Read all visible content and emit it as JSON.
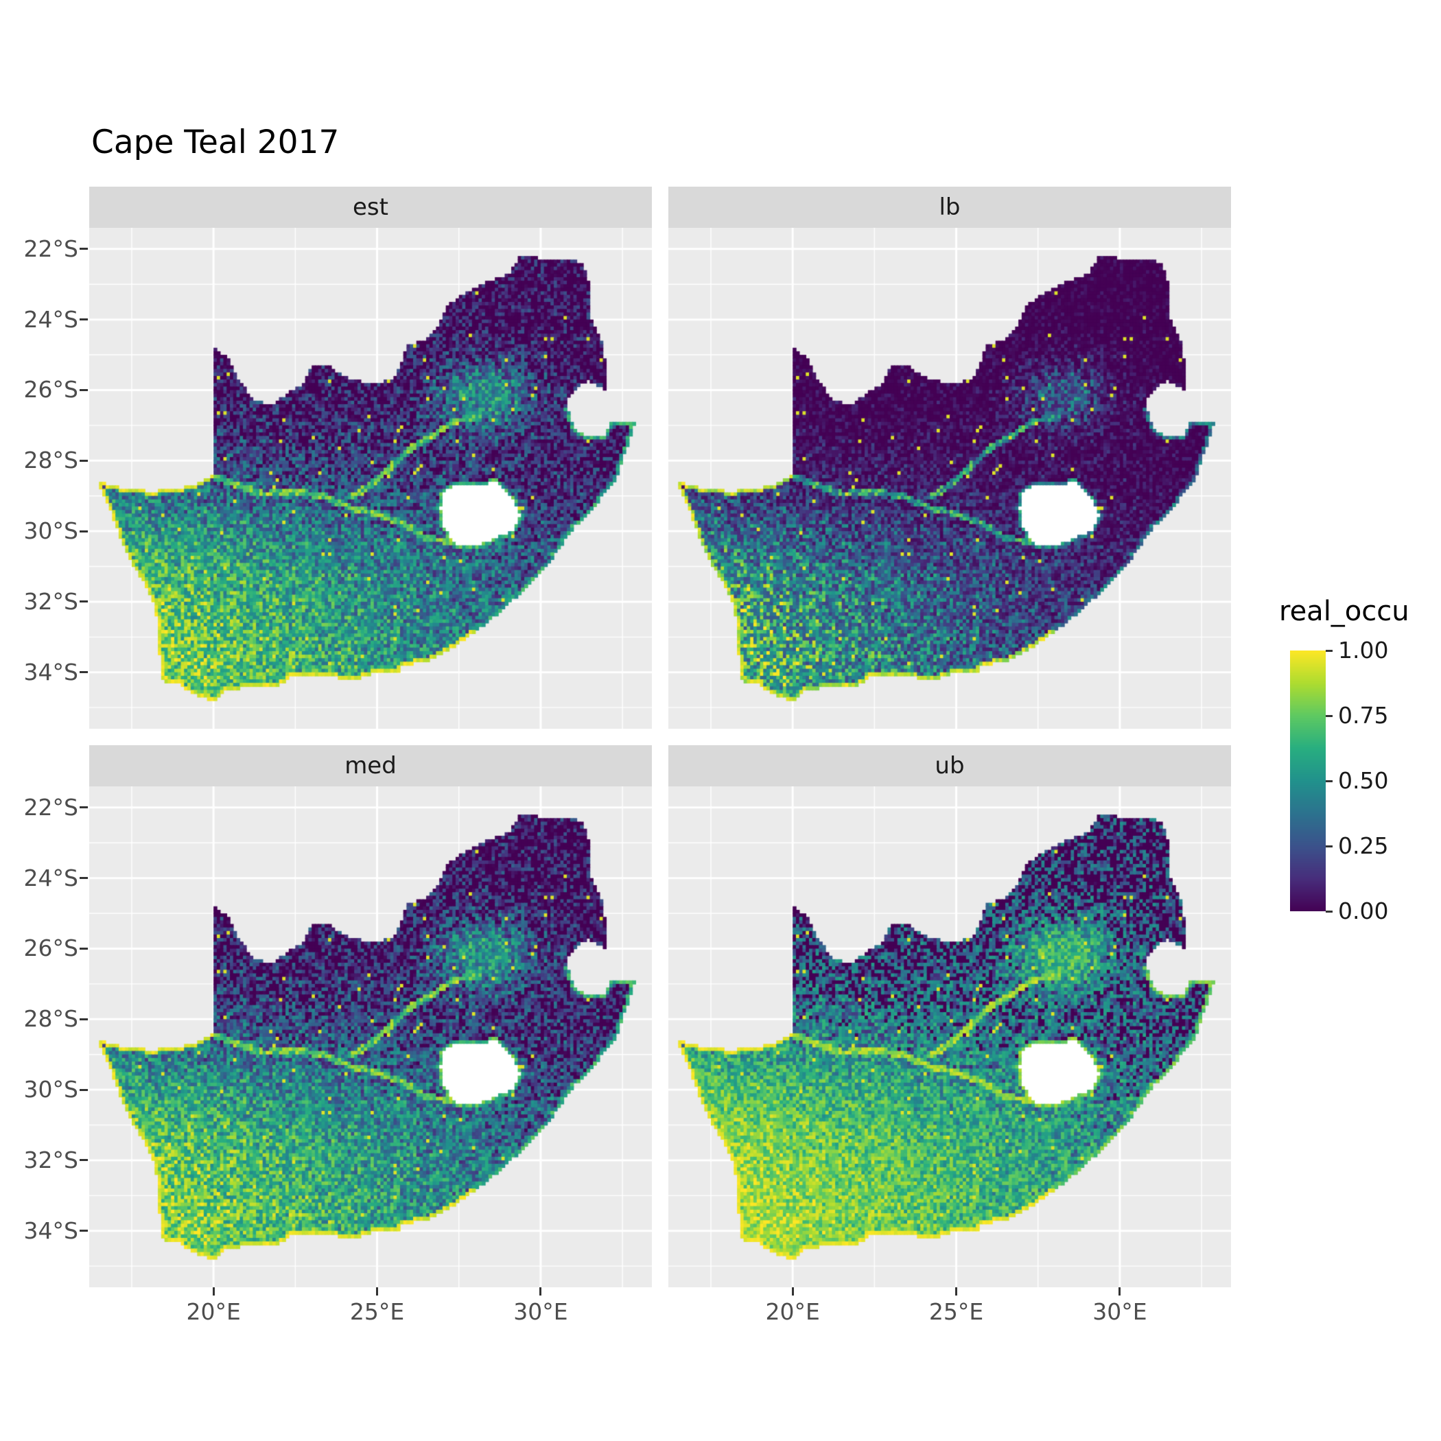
{
  "title": "Cape Teal 2017",
  "colors": {
    "background": "#FFFFFF",
    "panel_bg": "#EBEBEB",
    "strip_bg": "#D9D9D9",
    "grid": "#FFFFFF",
    "axis_text": "#4D4D4D",
    "tick": "#333333",
    "na_fill": "#FFFFFF",
    "title_text": "#000000"
  },
  "chart_data": {
    "type": "heatmap",
    "subtype": "faceted-raster-map",
    "title": "Cape Teal 2017",
    "facets": [
      {
        "label": "est",
        "gamma": 1.0
      },
      {
        "label": "lb",
        "gamma": 1.9
      },
      {
        "label": "med",
        "gamma": 0.9
      },
      {
        "label": "ub",
        "gamma": 0.55
      }
    ],
    "axes": {
      "x": {
        "labels": [
          "20°E",
          "25°E",
          "30°E"
        ],
        "values": [
          20,
          25,
          30
        ],
        "minor": [
          17.5,
          22.5,
          27.5,
          32.5
        ],
        "range": [
          16.2,
          33.4
        ]
      },
      "y": {
        "labels": [
          "22°S",
          "24°S",
          "26°S",
          "28°S",
          "30°S",
          "32°S",
          "34°S"
        ],
        "values": [
          -22,
          -24,
          -26,
          -28,
          -30,
          -32,
          -34
        ],
        "minor": [
          -23,
          -25,
          -27,
          -29,
          -31,
          -33,
          -35
        ],
        "range": [
          -35.6,
          -21.4
        ]
      }
    },
    "legend": {
      "title": "real_occu",
      "labels": [
        "1.00",
        "0.75",
        "0.50",
        "0.25",
        "0.00"
      ],
      "values": [
        1.0,
        0.75,
        0.5,
        0.25,
        0.0
      ],
      "position": "right"
    },
    "viridis": [
      "#440154",
      "#472D7B",
      "#3B528B",
      "#2C728E",
      "#21918C",
      "#28AE80",
      "#5EC962",
      "#ADDC30",
      "#FDE725"
    ],
    "value_model": {
      "res": 0.1,
      "lat_mid": -29.2,
      "lat_scale": 1.3,
      "lon_base": 1.12,
      "lon_slope": 0.052,
      "hotspot": {
        "lon": 28.3,
        "lat": -26.15,
        "amp": 0.62,
        "sx": 2.6,
        "sy": 1.1
      },
      "signal_weight": 0.82,
      "noise_amp": 0.5,
      "facet_jitter": 0.12
    },
    "map": {
      "south_africa": [
        [
          16.45,
          -28.58
        ],
        [
          17.2,
          -28.77
        ],
        [
          17.95,
          -28.86
        ],
        [
          18.7,
          -28.84
        ],
        [
          19.4,
          -28.68
        ],
        [
          19.98,
          -28.43
        ],
        [
          19.98,
          -24.75
        ],
        [
          20.45,
          -25.1
        ],
        [
          20.8,
          -25.75
        ],
        [
          21.25,
          -26.3
        ],
        [
          21.8,
          -26.4
        ],
        [
          22.25,
          -26.1
        ],
        [
          22.7,
          -25.85
        ],
        [
          23.0,
          -25.35
        ],
        [
          23.5,
          -25.3
        ],
        [
          24.0,
          -25.62
        ],
        [
          24.75,
          -25.8
        ],
        [
          25.4,
          -25.72
        ],
        [
          25.65,
          -25.45
        ],
        [
          25.9,
          -24.72
        ],
        [
          26.45,
          -24.6
        ],
        [
          26.85,
          -24.25
        ],
        [
          27.15,
          -23.6
        ],
        [
          27.75,
          -23.2
        ],
        [
          28.3,
          -22.95
        ],
        [
          29.0,
          -22.73
        ],
        [
          29.4,
          -22.18
        ],
        [
          30.1,
          -22.28
        ],
        [
          30.85,
          -22.3
        ],
        [
          31.3,
          -22.4
        ],
        [
          31.55,
          -23.2
        ],
        [
          31.55,
          -23.95
        ],
        [
          31.85,
          -24.55
        ],
        [
          31.97,
          -25.15
        ],
        [
          32.02,
          -25.65
        ],
        [
          31.95,
          -25.97
        ],
        [
          31.42,
          -25.73
        ],
        [
          31.05,
          -25.97
        ],
        [
          30.8,
          -26.32
        ],
        [
          30.9,
          -26.85
        ],
        [
          31.15,
          -27.2
        ],
        [
          31.6,
          -27.33
        ],
        [
          31.97,
          -27.31
        ],
        [
          32.13,
          -26.85
        ],
        [
          32.89,
          -26.86
        ],
        [
          32.62,
          -27.65
        ],
        [
          32.3,
          -28.5
        ],
        [
          31.8,
          -29.1
        ],
        [
          31.05,
          -29.85
        ],
        [
          30.4,
          -30.7
        ],
        [
          29.6,
          -31.55
        ],
        [
          28.8,
          -32.25
        ],
        [
          28.0,
          -32.85
        ],
        [
          27.3,
          -33.3
        ],
        [
          26.5,
          -33.7
        ],
        [
          25.7,
          -33.8
        ],
        [
          25.65,
          -34.05
        ],
        [
          25.0,
          -34.0
        ],
        [
          24.3,
          -34.2
        ],
        [
          23.4,
          -34.1
        ],
        [
          22.5,
          -34.05
        ],
        [
          21.9,
          -34.42
        ],
        [
          21.0,
          -34.42
        ],
        [
          20.4,
          -34.5
        ],
        [
          20.0,
          -34.82
        ],
        [
          19.4,
          -34.62
        ],
        [
          19.0,
          -34.35
        ],
        [
          18.5,
          -34.3
        ],
        [
          18.35,
          -34.0
        ],
        [
          18.47,
          -33.7
        ],
        [
          18.25,
          -33.3
        ],
        [
          18.35,
          -32.7
        ],
        [
          18.15,
          -32.0
        ],
        [
          17.8,
          -31.35
        ],
        [
          17.3,
          -30.55
        ],
        [
          17.0,
          -29.8
        ],
        [
          16.75,
          -29.15
        ]
      ],
      "lesotho": [
        [
          27.0,
          -28.9
        ],
        [
          27.55,
          -28.65
        ],
        [
          28.15,
          -28.7
        ],
        [
          28.65,
          -28.58
        ],
        [
          29.15,
          -29.1
        ],
        [
          29.38,
          -29.58
        ],
        [
          29.15,
          -29.97
        ],
        [
          28.8,
          -30.12
        ],
        [
          28.3,
          -30.32
        ],
        [
          27.75,
          -30.45
        ],
        [
          27.35,
          -30.33
        ],
        [
          27.05,
          -29.85
        ],
        [
          26.95,
          -29.35
        ]
      ],
      "rivers": [
        [
          [
            27.3,
            -30.3
          ],
          [
            26.5,
            -30.2
          ],
          [
            25.8,
            -29.8
          ],
          [
            25.0,
            -29.5
          ],
          [
            24.2,
            -29.35
          ],
          [
            23.4,
            -29.0
          ],
          [
            22.5,
            -28.9
          ],
          [
            21.5,
            -28.95
          ],
          [
            20.6,
            -28.65
          ],
          [
            19.98,
            -28.45
          ]
        ],
        [
          [
            28.1,
            -26.75
          ],
          [
            27.3,
            -26.9
          ],
          [
            26.7,
            -27.3
          ],
          [
            26.1,
            -27.6
          ],
          [
            25.4,
            -28.2
          ],
          [
            24.8,
            -28.7
          ],
          [
            24.2,
            -29.05
          ]
        ]
      ]
    }
  }
}
